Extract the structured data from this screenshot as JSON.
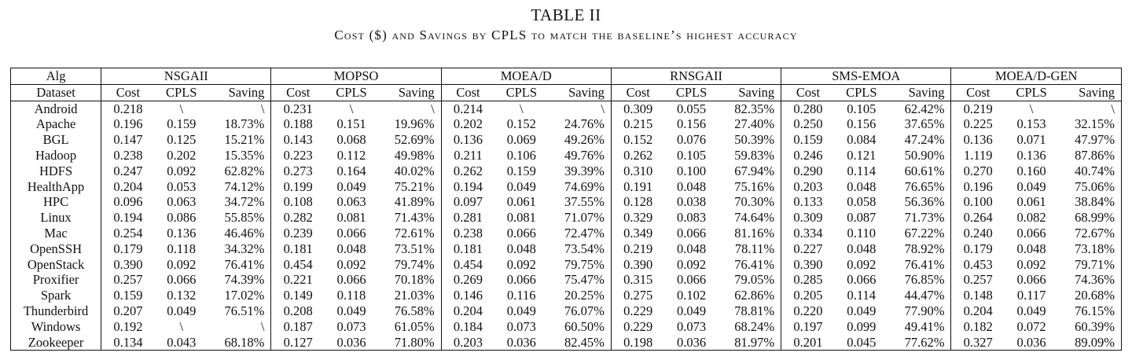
{
  "caption": {
    "number": "TABLE II",
    "title": "Cost ($) and Savings by CPLS to match the baseline’s highest accuracy"
  },
  "table": {
    "corner_top": "Alg",
    "corner_bottom": "Dataset",
    "subheaders": [
      "Cost",
      "CPLS",
      "Saving"
    ],
    "algorithms": [
      "NSGAII",
      "MOPSO",
      "MOEA/D",
      "RNSGAII",
      "SMS-EMOA",
      "MOEA/D-GEN"
    ],
    "rows": [
      {
        "dataset": "Android",
        "values": [
          [
            "0.218",
            "\\",
            "\\"
          ],
          [
            "0.231",
            "\\",
            "\\"
          ],
          [
            "0.214",
            "\\",
            "\\"
          ],
          [
            "0.309",
            "0.055",
            "82.35%"
          ],
          [
            "0.280",
            "0.105",
            "62.42%"
          ],
          [
            "0.219",
            "\\",
            "\\"
          ]
        ]
      },
      {
        "dataset": "Apache",
        "values": [
          [
            "0.196",
            "0.159",
            "18.73%"
          ],
          [
            "0.188",
            "0.151",
            "19.96%"
          ],
          [
            "0.202",
            "0.152",
            "24.76%"
          ],
          [
            "0.215",
            "0.156",
            "27.40%"
          ],
          [
            "0.250",
            "0.156",
            "37.65%"
          ],
          [
            "0.225",
            "0.153",
            "32.15%"
          ]
        ]
      },
      {
        "dataset": "BGL",
        "values": [
          [
            "0.147",
            "0.125",
            "15.21%"
          ],
          [
            "0.143",
            "0.068",
            "52.69%"
          ],
          [
            "0.136",
            "0.069",
            "49.26%"
          ],
          [
            "0.152",
            "0.076",
            "50.39%"
          ],
          [
            "0.159",
            "0.084",
            "47.24%"
          ],
          [
            "0.136",
            "0.071",
            "47.97%"
          ]
        ]
      },
      {
        "dataset": "Hadoop",
        "values": [
          [
            "0.238",
            "0.202",
            "15.35%"
          ],
          [
            "0.223",
            "0.112",
            "49.98%"
          ],
          [
            "0.211",
            "0.106",
            "49.76%"
          ],
          [
            "0.262",
            "0.105",
            "59.83%"
          ],
          [
            "0.246",
            "0.121",
            "50.90%"
          ],
          [
            "1.119",
            "0.136",
            "87.86%"
          ]
        ]
      },
      {
        "dataset": "HDFS",
        "values": [
          [
            "0.247",
            "0.092",
            "62.82%"
          ],
          [
            "0.273",
            "0.164",
            "40.02%"
          ],
          [
            "0.262",
            "0.159",
            "39.39%"
          ],
          [
            "0.310",
            "0.100",
            "67.94%"
          ],
          [
            "0.290",
            "0.114",
            "60.61%"
          ],
          [
            "0.270",
            "0.160",
            "40.74%"
          ]
        ]
      },
      {
        "dataset": "HealthApp",
        "values": [
          [
            "0.204",
            "0.053",
            "74.12%"
          ],
          [
            "0.199",
            "0.049",
            "75.21%"
          ],
          [
            "0.194",
            "0.049",
            "74.69%"
          ],
          [
            "0.191",
            "0.048",
            "75.16%"
          ],
          [
            "0.203",
            "0.048",
            "76.65%"
          ],
          [
            "0.196",
            "0.049",
            "75.06%"
          ]
        ]
      },
      {
        "dataset": "HPC",
        "values": [
          [
            "0.096",
            "0.063",
            "34.72%"
          ],
          [
            "0.108",
            "0.063",
            "41.89%"
          ],
          [
            "0.097",
            "0.061",
            "37.55%"
          ],
          [
            "0.128",
            "0.038",
            "70.30%"
          ],
          [
            "0.133",
            "0.058",
            "56.36%"
          ],
          [
            "0.100",
            "0.061",
            "38.84%"
          ]
        ]
      },
      {
        "dataset": "Linux",
        "values": [
          [
            "0.194",
            "0.086",
            "55.85%"
          ],
          [
            "0.282",
            "0.081",
            "71.43%"
          ],
          [
            "0.281",
            "0.081",
            "71.07%"
          ],
          [
            "0.329",
            "0.083",
            "74.64%"
          ],
          [
            "0.309",
            "0.087",
            "71.73%"
          ],
          [
            "0.264",
            "0.082",
            "68.99%"
          ]
        ]
      },
      {
        "dataset": "Mac",
        "values": [
          [
            "0.254",
            "0.136",
            "46.46%"
          ],
          [
            "0.239",
            "0.066",
            "72.61%"
          ],
          [
            "0.238",
            "0.066",
            "72.47%"
          ],
          [
            "0.349",
            "0.066",
            "81.16%"
          ],
          [
            "0.334",
            "0.110",
            "67.22%"
          ],
          [
            "0.240",
            "0.066",
            "72.67%"
          ]
        ]
      },
      {
        "dataset": "OpenSSH",
        "values": [
          [
            "0.179",
            "0.118",
            "34.32%"
          ],
          [
            "0.181",
            "0.048",
            "73.51%"
          ],
          [
            "0.181",
            "0.048",
            "73.54%"
          ],
          [
            "0.219",
            "0.048",
            "78.11%"
          ],
          [
            "0.227",
            "0.048",
            "78.92%"
          ],
          [
            "0.179",
            "0.048",
            "73.18%"
          ]
        ]
      },
      {
        "dataset": "OpenStack",
        "values": [
          [
            "0.390",
            "0.092",
            "76.41%"
          ],
          [
            "0.454",
            "0.092",
            "79.74%"
          ],
          [
            "0.454",
            "0.092",
            "79.75%"
          ],
          [
            "0.390",
            "0.092",
            "76.41%"
          ],
          [
            "0.390",
            "0.092",
            "76.41%"
          ],
          [
            "0.453",
            "0.092",
            "79.71%"
          ]
        ]
      },
      {
        "dataset": "Proxifier",
        "values": [
          [
            "0.257",
            "0.066",
            "74.39%"
          ],
          [
            "0.221",
            "0.066",
            "70.18%"
          ],
          [
            "0.269",
            "0.066",
            "75.47%"
          ],
          [
            "0.315",
            "0.066",
            "79.05%"
          ],
          [
            "0.285",
            "0.066",
            "76.85%"
          ],
          [
            "0.257",
            "0.066",
            "74.36%"
          ]
        ]
      },
      {
        "dataset": "Spark",
        "values": [
          [
            "0.159",
            "0.132",
            "17.02%"
          ],
          [
            "0.149",
            "0.118",
            "21.03%"
          ],
          [
            "0.146",
            "0.116",
            "20.25%"
          ],
          [
            "0.275",
            "0.102",
            "62.86%"
          ],
          [
            "0.205",
            "0.114",
            "44.47%"
          ],
          [
            "0.148",
            "0.117",
            "20.68%"
          ]
        ]
      },
      {
        "dataset": "Thunderbird",
        "values": [
          [
            "0.207",
            "0.049",
            "76.51%"
          ],
          [
            "0.208",
            "0.049",
            "76.58%"
          ],
          [
            "0.204",
            "0.049",
            "76.07%"
          ],
          [
            "0.229",
            "0.049",
            "78.81%"
          ],
          [
            "0.220",
            "0.049",
            "77.90%"
          ],
          [
            "0.204",
            "0.049",
            "76.15%"
          ]
        ]
      },
      {
        "dataset": "Windows",
        "values": [
          [
            "0.192",
            "\\",
            "\\"
          ],
          [
            "0.187",
            "0.073",
            "61.05%"
          ],
          [
            "0.184",
            "0.073",
            "60.50%"
          ],
          [
            "0.229",
            "0.073",
            "68.24%"
          ],
          [
            "0.197",
            "0.099",
            "49.41%"
          ],
          [
            "0.182",
            "0.072",
            "60.39%"
          ]
        ]
      },
      {
        "dataset": "Zookeeper",
        "values": [
          [
            "0.134",
            "0.043",
            "68.18%"
          ],
          [
            "0.127",
            "0.036",
            "71.80%"
          ],
          [
            "0.203",
            "0.036",
            "82.45%"
          ],
          [
            "0.198",
            "0.036",
            "81.97%"
          ],
          [
            "0.201",
            "0.045",
            "77.62%"
          ],
          [
            "0.327",
            "0.036",
            "89.09%"
          ]
        ]
      }
    ]
  }
}
